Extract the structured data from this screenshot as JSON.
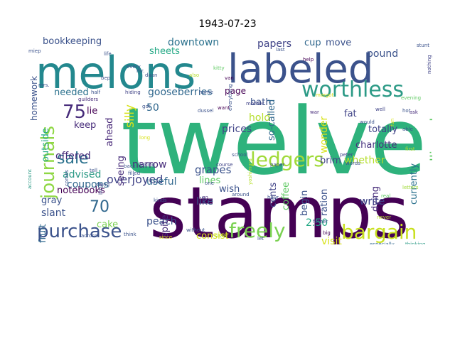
{
  "title": "1943-07-23",
  "words": [
    {
      "text": "twelve",
      "color": "#2eb27c"
    },
    {
      "text": "stamps",
      "color": "#440154"
    },
    {
      "text": "melons",
      "color": "#23888e"
    },
    {
      "text": "labeled",
      "color": "#3b528b"
    },
    {
      "text": "worthless",
      "color": "#2c9a86"
    },
    {
      "text": "ledgers",
      "color": "#a0da39"
    },
    {
      "text": "bargain",
      "color": "#c8e020"
    },
    {
      "text": "freely",
      "color": "#7ad151"
    },
    {
      "text": "purchase",
      "color": "#3b528b"
    },
    {
      "text": "journals",
      "color": "#8fd744"
    },
    {
      "text": "sale",
      "color": "#2c728e"
    },
    {
      "text": "75",
      "color": "#472c7a"
    },
    {
      "text": "70",
      "color": "#31688e"
    },
    {
      "text": "overjoyed",
      "color": "#404387"
    },
    {
      "text": "gooseberries",
      "color": "#31688e"
    },
    {
      "text": "calligraphy",
      "color": "#5ec962"
    },
    {
      "text": "grapes",
      "color": "#3b528b"
    },
    {
      "text": "coupons",
      "color": "#31688e"
    },
    {
      "text": "advised",
      "color": "#2c9a86"
    },
    {
      "text": "offered",
      "color": "#472c7a"
    },
    {
      "text": "downtown",
      "color": "#2c728e"
    },
    {
      "text": "papers",
      "color": "#404387"
    },
    {
      "text": "bookkeeping",
      "color": "#3b528b"
    },
    {
      "text": "sheets",
      "color": "#22a884"
    },
    {
      "text": "cup",
      "color": "#31688e"
    },
    {
      "text": "move",
      "color": "#3b528b"
    },
    {
      "text": "pound",
      "color": "#3b528b"
    },
    {
      "text": "needed",
      "color": "#2c728e"
    },
    {
      "text": "page",
      "color": "#440154"
    },
    {
      "text": "bath",
      "color": "#3b528b"
    },
    {
      "text": "lie",
      "color": "#440154"
    },
    {
      "text": "keep",
      "color": "#472c7a"
    },
    {
      "text": "prices",
      "color": "#404387"
    },
    {
      "text": "totally",
      "color": "#404387"
    },
    {
      "text": "charlotte",
      "color": "#46327e"
    },
    {
      "text": "whether",
      "color": "#b5de2b"
    },
    {
      "text": "brim",
      "color": "#404387"
    },
    {
      "text": "fat",
      "color": "#404387"
    },
    {
      "text": "hold",
      "color": "#b5de2b"
    },
    {
      "text": "wonder",
      "color": "#d8e219"
    },
    {
      "text": "so-called",
      "color": "#31688e"
    },
    {
      "text": "silly",
      "color": "#d8e219"
    },
    {
      "text": "ahead",
      "color": "#482878"
    },
    {
      "text": "50",
      "color": "#31688e"
    },
    {
      "text": "narrow",
      "color": "#472c7a"
    },
    {
      "text": "lines",
      "color": "#5ec962"
    },
    {
      "text": "wish",
      "color": "#3b528b"
    },
    {
      "text": "like",
      "color": "#3b528b"
    },
    {
      "text": "useful",
      "color": "#31688e"
    },
    {
      "text": "cents",
      "color": "#404387"
    },
    {
      "text": "coffee",
      "color": "#5ec962"
    },
    {
      "text": "begin",
      "color": "#3b528b"
    },
    {
      "text": "ration",
      "color": "#3b528b"
    },
    {
      "text": "dying",
      "color": "#472c7a"
    },
    {
      "text": "write",
      "color": "#404387"
    },
    {
      "text": "currently",
      "color": "#2c728e"
    },
    {
      "text": "2.50",
      "color": "#22a884"
    },
    {
      "text": "visit",
      "color": "#d8e219"
    },
    {
      "text": "consist",
      "color": "#d8e219"
    },
    {
      "text": "peach",
      "color": "#3b528b"
    },
    {
      "text": "cake",
      "color": "#7ad151"
    },
    {
      "text": "slant",
      "color": "#3b528b"
    },
    {
      "text": "fruit",
      "color": "#31688e"
    },
    {
      "text": "gray",
      "color": "#3b528b"
    },
    {
      "text": "notebooks",
      "color": "#440154"
    },
    {
      "text": "seeing",
      "color": "#472c7a"
    },
    {
      "text": "spite",
      "color": "#472c7a"
    },
    {
      "text": "homework",
      "color": "#3b528b"
    },
    {
      "text": "outside",
      "color": "#22a884"
    },
    {
      "text": "write",
      "color": "#404387"
    },
    {
      "text": "help",
      "color": "#440154"
    },
    {
      "text": "every",
      "color": "#3b528b"
    },
    {
      "text": "kitty",
      "color": "#5ec962"
    },
    {
      "text": "also",
      "color": "#b5de2b"
    },
    {
      "text": "got",
      "color": "#3b528b"
    },
    {
      "text": "want",
      "color": "#440154"
    },
    {
      "text": "mother",
      "color": "#404387"
    },
    {
      "text": "home",
      "color": "#3b528b"
    },
    {
      "text": "hiding",
      "color": "#404387"
    },
    {
      "text": "half",
      "color": "#3b528b"
    },
    {
      "text": "guilders",
      "color": "#472c7a"
    },
    {
      "text": "mrs.",
      "color": "#3b528b"
    },
    {
      "text": "nothing",
      "color": "#404387"
    },
    {
      "text": "evening",
      "color": "#5ec962"
    },
    {
      "text": "margot",
      "color": "#d8e219"
    },
    {
      "text": "hot",
      "color": "#3b528b"
    },
    {
      "text": "ask",
      "color": "#472c7a"
    },
    {
      "text": "well",
      "color": "#404387"
    },
    {
      "text": "would",
      "color": "#3b528b"
    },
    {
      "text": "war",
      "color": "#472c7a"
    },
    {
      "text": "fun",
      "color": "#d8e219"
    },
    {
      "text": "able",
      "color": "#3b528b"
    },
    {
      "text": "first",
      "color": "#b5de2b"
    },
    {
      "text": "letters",
      "color": "#a0da39"
    },
    {
      "text": "thinking",
      "color": "#2c9a86"
    },
    {
      "text": "especially",
      "color": "#31688e"
    },
    {
      "text": "big",
      "color": "#440154"
    },
    {
      "text": "let",
      "color": "#3b528b"
    },
    {
      "text": "father",
      "color": "#3b528b"
    },
    {
      "text": "never",
      "color": "#b5de2b"
    },
    {
      "text": "real",
      "color": "#5ec962"
    },
    {
      "text": "words",
      "color": "#3b528b"
    },
    {
      "text": "peter",
      "color": "#404387"
    },
    {
      "text": "paper",
      "color": "#3b528b"
    },
    {
      "text": "school",
      "color": "#3b528b"
    },
    {
      "text": "course",
      "color": "#404387"
    },
    {
      "text": "sister",
      "color": "#b5de2b"
    },
    {
      "text": "think",
      "color": "#3b528b"
    },
    {
      "text": "across",
      "color": "#3b528b"
    },
    {
      "text": "without",
      "color": "#3b528b"
    },
    {
      "text": "since",
      "color": "#d8e219"
    },
    {
      "text": "kinds",
      "color": "#3b528b"
    },
    {
      "text": "go",
      "color": "#472c7a"
    },
    {
      "text": "one",
      "color": "#3b528b"
    },
    {
      "text": "around",
      "color": "#3b528b"
    },
    {
      "text": "hour",
      "color": "#3b528b"
    },
    {
      "text": "yoshimura",
      "color": "#b5de2b"
    },
    {
      "text": "taking",
      "color": "#3b528b"
    },
    {
      "text": "back",
      "color": "#3b528b"
    },
    {
      "text": "tell",
      "color": "#3b528b"
    },
    {
      "text": "thing",
      "color": "#3b528b"
    },
    {
      "text": "comes",
      "color": "#3b528b"
    },
    {
      "text": "account",
      "color": "#2c9a86"
    },
    {
      "text": "filled",
      "color": "#3b528b"
    },
    {
      "text": "little",
      "color": "#404387"
    },
    {
      "text": "dussel",
      "color": "#3b528b"
    },
    {
      "text": "everything",
      "color": "#3b528b"
    },
    {
      "text": "van",
      "color": "#440154"
    },
    {
      "text": "mr.",
      "color": "#3b528b"
    },
    {
      "text": "daan",
      "color": "#3b528b"
    },
    {
      "text": "life",
      "color": "#3b528b"
    },
    {
      "text": "last",
      "color": "#3b528b"
    },
    {
      "text": "bep",
      "color": "#3b528b"
    },
    {
      "text": "miep",
      "color": "#3b528b"
    },
    {
      "text": "long",
      "color": "#d8e219"
    },
    {
      "text": "stunt",
      "color": "#3b528b"
    }
  ]
}
